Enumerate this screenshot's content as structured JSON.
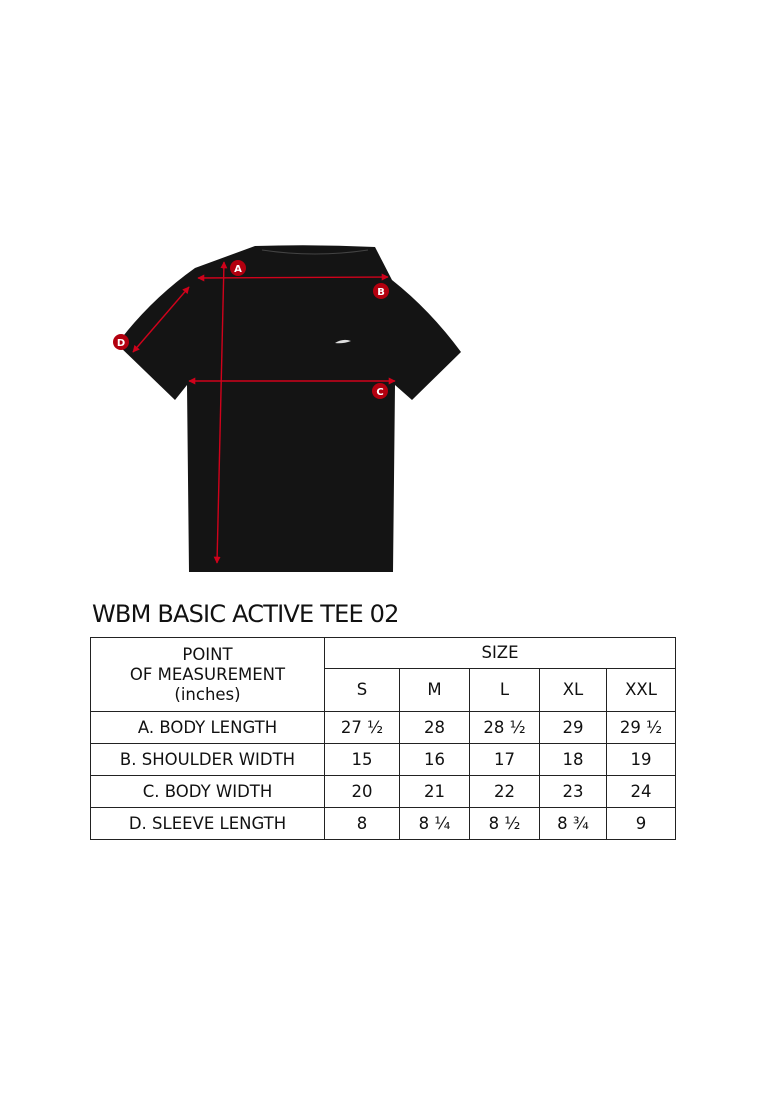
{
  "title": "WBM BASIC ACTIVE TEE 02",
  "diagram": {
    "markers": [
      "A",
      "B",
      "C",
      "D"
    ],
    "arrow_color": "#d0021b",
    "shirt_color": "#141414"
  },
  "table": {
    "header_point": [
      "POINT",
      "OF MEASUREMENT",
      "(inches)"
    ],
    "header_size": "SIZE",
    "sizes": [
      "S",
      "M",
      "L",
      "XL",
      "XXL"
    ],
    "rows": [
      {
        "label": "A. BODY LENGTH",
        "values": [
          "27 ½",
          "28",
          "28 ½",
          "29",
          "29 ½"
        ]
      },
      {
        "label": "B. SHOULDER WIDTH",
        "values": [
          "15",
          "16",
          "17",
          "18",
          "19"
        ]
      },
      {
        "label": "C. BODY WIDTH",
        "values": [
          "20",
          "21",
          "22",
          "23",
          "24"
        ]
      },
      {
        "label": "D. SLEEVE LENGTH",
        "values": [
          "8",
          "8 ¼",
          "8 ½",
          "8 ¾",
          "9"
        ]
      }
    ]
  }
}
